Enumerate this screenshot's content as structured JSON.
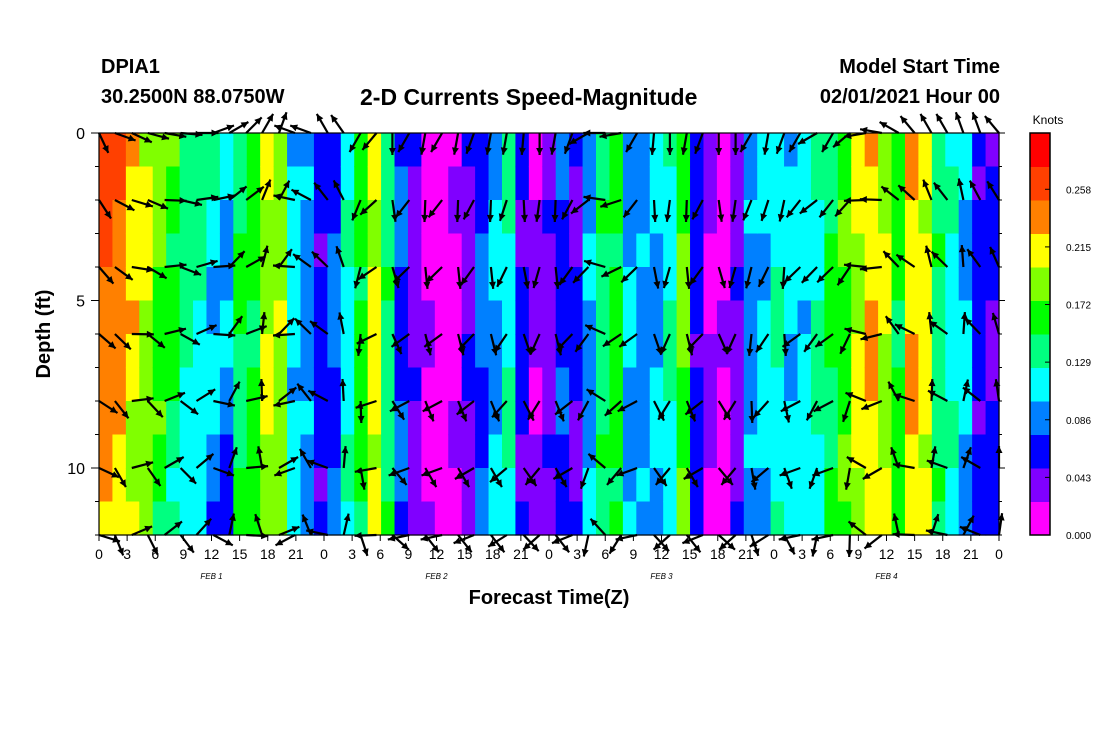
{
  "header": {
    "station": "DPIA1",
    "coordinates": "30.2500N 88.0750W",
    "title": "2-D Currents Speed-Magnitude",
    "start_label": "Model Start Time",
    "start_time": "02/01/2021 Hour 00"
  },
  "chart_data": {
    "type": "heatmap",
    "title": "2-D Currents Speed-Magnitude",
    "xlabel": "Forecast Time(Z)",
    "ylabel": "Depth (ft)",
    "x_tick_labels": [
      "0",
      "3",
      "6",
      "9",
      "12",
      "15",
      "18",
      "21",
      "0",
      "3",
      "6",
      "9",
      "12",
      "15",
      "18",
      "21",
      "0",
      "3",
      "6",
      "9",
      "12",
      "15",
      "18",
      "21",
      "0",
      "3",
      "6",
      "9",
      "12",
      "15",
      "18",
      "21",
      "0"
    ],
    "date_labels": [
      "FEB 1",
      "FEB 2",
      "FEB 3",
      "FEB 4"
    ],
    "y_tick_labels": [
      "0",
      "5",
      "10"
    ],
    "ylim": [
      0,
      12
    ],
    "xlim_hours": [
      0,
      96
    ],
    "colorbar": {
      "unit": "Knots",
      "ticks": [
        "0.258",
        "0.215",
        "0.172",
        "0.129",
        "0.086",
        "0.043",
        "0.000"
      ],
      "range": [
        0,
        0.3
      ],
      "colors": [
        "#ff00ff",
        "#8000ff",
        "#0000ff",
        "#0080ff",
        "#00ffff",
        "#00ff80",
        "#00ff00",
        "#80ff00",
        "#ffff00",
        "#ff8000",
        "#ff4000",
        "#ff0000"
      ]
    },
    "column_speeds": [
      0.26,
      0.25,
      0.23,
      0.21,
      0.19,
      0.17,
      0.15,
      0.14,
      0.12,
      0.11,
      0.15,
      0.16,
      0.2,
      0.19,
      0.11,
      0.09,
      0.06,
      0.08,
      0.12,
      0.16,
      0.21,
      0.14,
      0.07,
      0.04,
      0.02,
      0.0,
      0.02,
      0.04,
      0.08,
      0.1,
      0.12,
      0.06,
      0.03,
      0.04,
      0.07,
      0.05,
      0.09,
      0.14,
      0.16,
      0.1,
      0.09,
      0.1,
      0.12,
      0.18,
      0.06,
      0.03,
      0.02,
      0.04,
      0.09,
      0.11,
      0.12,
      0.11,
      0.11,
      0.13,
      0.15,
      0.17,
      0.2,
      0.22,
      0.2,
      0.16,
      0.22,
      0.21,
      0.14,
      0.12,
      0.1,
      0.06,
      0.05
    ],
    "arrow_rows_depth_ft": [
      0,
      2,
      4,
      6,
      8,
      10,
      12
    ],
    "arrow_columns_hour": [
      0,
      1.7,
      3.5,
      5.2,
      7,
      8.7,
      10.4,
      12.2,
      13.9,
      15.7,
      17.4,
      19.2,
      20.9,
      22.6,
      24.4,
      26.1,
      27.9,
      29.6,
      31.3,
      33.1,
      34.8,
      36.6,
      38.3,
      40,
      41.8,
      43.5,
      45.3,
      47,
      48.7,
      50.5,
      52.2,
      54,
      55.7,
      57.4,
      59.2,
      60.9,
      62.7,
      64.4,
      66.1,
      67.9,
      69.6,
      71.4,
      73.1,
      74.8,
      76.6,
      78.3,
      80.1,
      81.8,
      83.5,
      85.3,
      87,
      88.8,
      90.5,
      92.2,
      94,
      96
    ],
    "arrow_directions_deg": [
      155,
      110,
      115,
      105,
      100,
      95,
      90,
      70,
      60,
      45,
      30,
      20,
      -70,
      -70,
      -30,
      -35,
      -150,
      -140,
      -180,
      -150,
      -170,
      -150,
      -170,
      -160,
      -170,
      -170,
      -175,
      -180,
      -170,
      -160,
      -120,
      -90,
      -100,
      -150,
      -175,
      -180,
      -170,
      -160,
      -180,
      -180,
      -150,
      -170,
      -160,
      -150,
      -120,
      -150,
      -130,
      -100,
      -80,
      -60,
      -40,
      -30,
      -30,
      -20,
      -20,
      -40
    ],
    "arrow_lengths": [
      1,
      1,
      1,
      1,
      1,
      1,
      1,
      1,
      1,
      1,
      1,
      1,
      1,
      1,
      1,
      1,
      1,
      1,
      1,
      1,
      1,
      1,
      1,
      1,
      1,
      1,
      1,
      1,
      1,
      1,
      1,
      1,
      1,
      1,
      1,
      1,
      1,
      1,
      1,
      1,
      1,
      1,
      1,
      1,
      1,
      1,
      1,
      1,
      1,
      1,
      1,
      1,
      1,
      1,
      1,
      1
    ]
  }
}
